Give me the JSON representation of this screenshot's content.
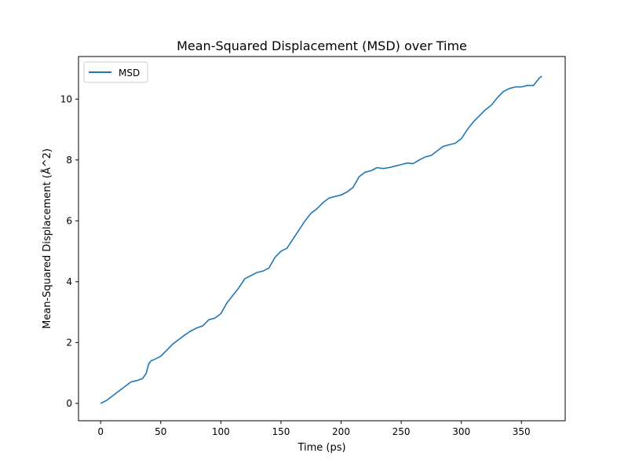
{
  "chart_data": {
    "type": "line",
    "title": "Mean-Squared Displacement (MSD) over Time",
    "xlabel": "Time (ps)",
    "ylabel": "Mean-Squared Displacement (Å^2)",
    "xlim": [
      -18.4,
      386.4
    ],
    "ylim": [
      -0.57,
      11.4
    ],
    "xticks": [
      0,
      50,
      100,
      150,
      200,
      250,
      300,
      350
    ],
    "yticks": [
      0,
      2,
      4,
      6,
      8,
      10
    ],
    "grid": false,
    "legend": {
      "position": "top-left",
      "entries": [
        "MSD"
      ]
    },
    "series": [
      {
        "name": "MSD",
        "color": "#1f77b4",
        "x": [
          0,
          5,
          10,
          15,
          20,
          25,
          30,
          35,
          38,
          40,
          42,
          45,
          50,
          55,
          60,
          65,
          70,
          75,
          80,
          85,
          90,
          95,
          100,
          105,
          110,
          115,
          120,
          125,
          130,
          135,
          140,
          145,
          150,
          155,
          160,
          165,
          170,
          175,
          180,
          185,
          190,
          195,
          200,
          205,
          210,
          215,
          220,
          225,
          230,
          235,
          240,
          245,
          250,
          255,
          260,
          265,
          270,
          275,
          280,
          285,
          290,
          295,
          300,
          305,
          310,
          315,
          320,
          325,
          330,
          335,
          340,
          345,
          350,
          355,
          360,
          365,
          367
        ],
        "y": [
          0.0,
          0.1,
          0.25,
          0.4,
          0.55,
          0.7,
          0.75,
          0.82,
          1.0,
          1.3,
          1.4,
          1.45,
          1.55,
          1.75,
          1.95,
          2.1,
          2.25,
          2.38,
          2.48,
          2.55,
          2.75,
          2.8,
          2.95,
          3.3,
          3.55,
          3.8,
          4.1,
          4.2,
          4.3,
          4.35,
          4.45,
          4.8,
          5.0,
          5.1,
          5.4,
          5.7,
          6.0,
          6.25,
          6.4,
          6.6,
          6.75,
          6.8,
          6.85,
          6.95,
          7.1,
          7.45,
          7.6,
          7.65,
          7.75,
          7.72,
          7.75,
          7.8,
          7.85,
          7.9,
          7.88,
          8.0,
          8.1,
          8.15,
          8.3,
          8.45,
          8.5,
          8.55,
          8.7,
          9.0,
          9.25,
          9.45,
          9.65,
          9.8,
          10.05,
          10.25,
          10.35,
          10.4,
          10.4,
          10.45,
          10.45,
          10.7,
          10.75
        ]
      }
    ]
  }
}
